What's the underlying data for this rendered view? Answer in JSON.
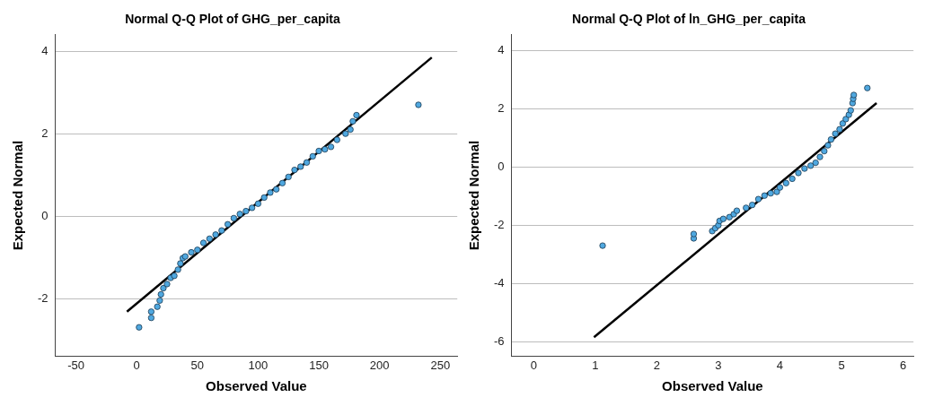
{
  "chart_data": [
    {
      "type": "scatter",
      "title": "Normal Q-Q Plot of GHG_per_capita",
      "xlabel": "Observed Value",
      "ylabel": "Expected Normal",
      "xlim": [
        -67,
        264
      ],
      "xticks": [
        -50,
        0,
        50,
        100,
        150,
        200,
        250
      ],
      "ylim": [
        -3.4,
        4.4
      ],
      "yticks": [
        -2,
        0,
        2,
        4
      ],
      "grid": "y",
      "legend": false,
      "series": [
        {
          "marker": "circle",
          "color": "#4fa8e0",
          "x": [
            2,
            12,
            12,
            17,
            19,
            20,
            22,
            25,
            28,
            31,
            34,
            36,
            38,
            40,
            45,
            50,
            55,
            60,
            65,
            70,
            75,
            80,
            85,
            90,
            95,
            100,
            105,
            110,
            115,
            120,
            125,
            130,
            135,
            140,
            145,
            150,
            155,
            160,
            165,
            172,
            176,
            178,
            181,
            232
          ],
          "values": [
            -2.7,
            -2.47,
            -2.32,
            -2.2,
            -2.05,
            -1.9,
            -1.75,
            -1.65,
            -1.5,
            -1.45,
            -1.3,
            -1.15,
            -1.02,
            -0.98,
            -0.88,
            -0.82,
            -0.65,
            -0.55,
            -0.45,
            -0.35,
            -0.2,
            -0.05,
            0.05,
            0.12,
            0.2,
            0.3,
            0.45,
            0.57,
            0.65,
            0.8,
            0.95,
            1.12,
            1.2,
            1.3,
            1.45,
            1.58,
            1.62,
            1.68,
            1.85,
            2.0,
            2.1,
            2.3,
            2.45,
            2.7
          ]
        },
        {
          "type": "line",
          "marker": "none",
          "color": "#000000",
          "x": [
            -8,
            243
          ],
          "values": [
            -2.32,
            3.85
          ]
        }
      ]
    },
    {
      "type": "scatter",
      "title": "Normal Q-Q Plot of ln_GHG_per_capita",
      "xlabel": "Observed Value",
      "ylabel": "Expected Normal",
      "xlim": [
        -0.36,
        6.17
      ],
      "xticks": [
        0,
        1,
        2,
        3,
        4,
        5,
        6
      ],
      "ylim": [
        -6.5,
        4.55
      ],
      "yticks": [
        -6,
        -4,
        -2,
        0,
        2,
        4
      ],
      "grid": "y",
      "legend": false,
      "series": [
        {
          "marker": "circle",
          "color": "#4fa8e0",
          "x": [
            1.12,
            2.6,
            2.6,
            2.9,
            2.95,
            3.0,
            3.02,
            3.08,
            3.18,
            3.25,
            3.3,
            3.45,
            3.55,
            3.65,
            3.75,
            3.85,
            3.95,
            4.0,
            4.1,
            4.2,
            4.3,
            4.4,
            4.5,
            4.58,
            4.65,
            4.72,
            4.78,
            4.83,
            4.9,
            4.97,
            5.02,
            5.07,
            5.12,
            5.15,
            5.18,
            5.19,
            5.2,
            5.42
          ],
          "values": [
            -2.7,
            -2.45,
            -2.3,
            -2.2,
            -2.1,
            -2.0,
            -1.85,
            -1.78,
            -1.72,
            -1.62,
            -1.5,
            -1.4,
            -1.3,
            -1.1,
            -0.98,
            -0.9,
            -0.85,
            -0.7,
            -0.55,
            -0.4,
            -0.2,
            -0.05,
            0.05,
            0.15,
            0.35,
            0.55,
            0.75,
            0.95,
            1.15,
            1.3,
            1.5,
            1.65,
            1.8,
            1.95,
            2.2,
            2.35,
            2.48,
            2.72
          ]
        },
        {
          "type": "line",
          "marker": "none",
          "color": "#000000",
          "x": [
            0.98,
            5.57
          ],
          "values": [
            -5.85,
            2.2
          ]
        }
      ]
    }
  ]
}
